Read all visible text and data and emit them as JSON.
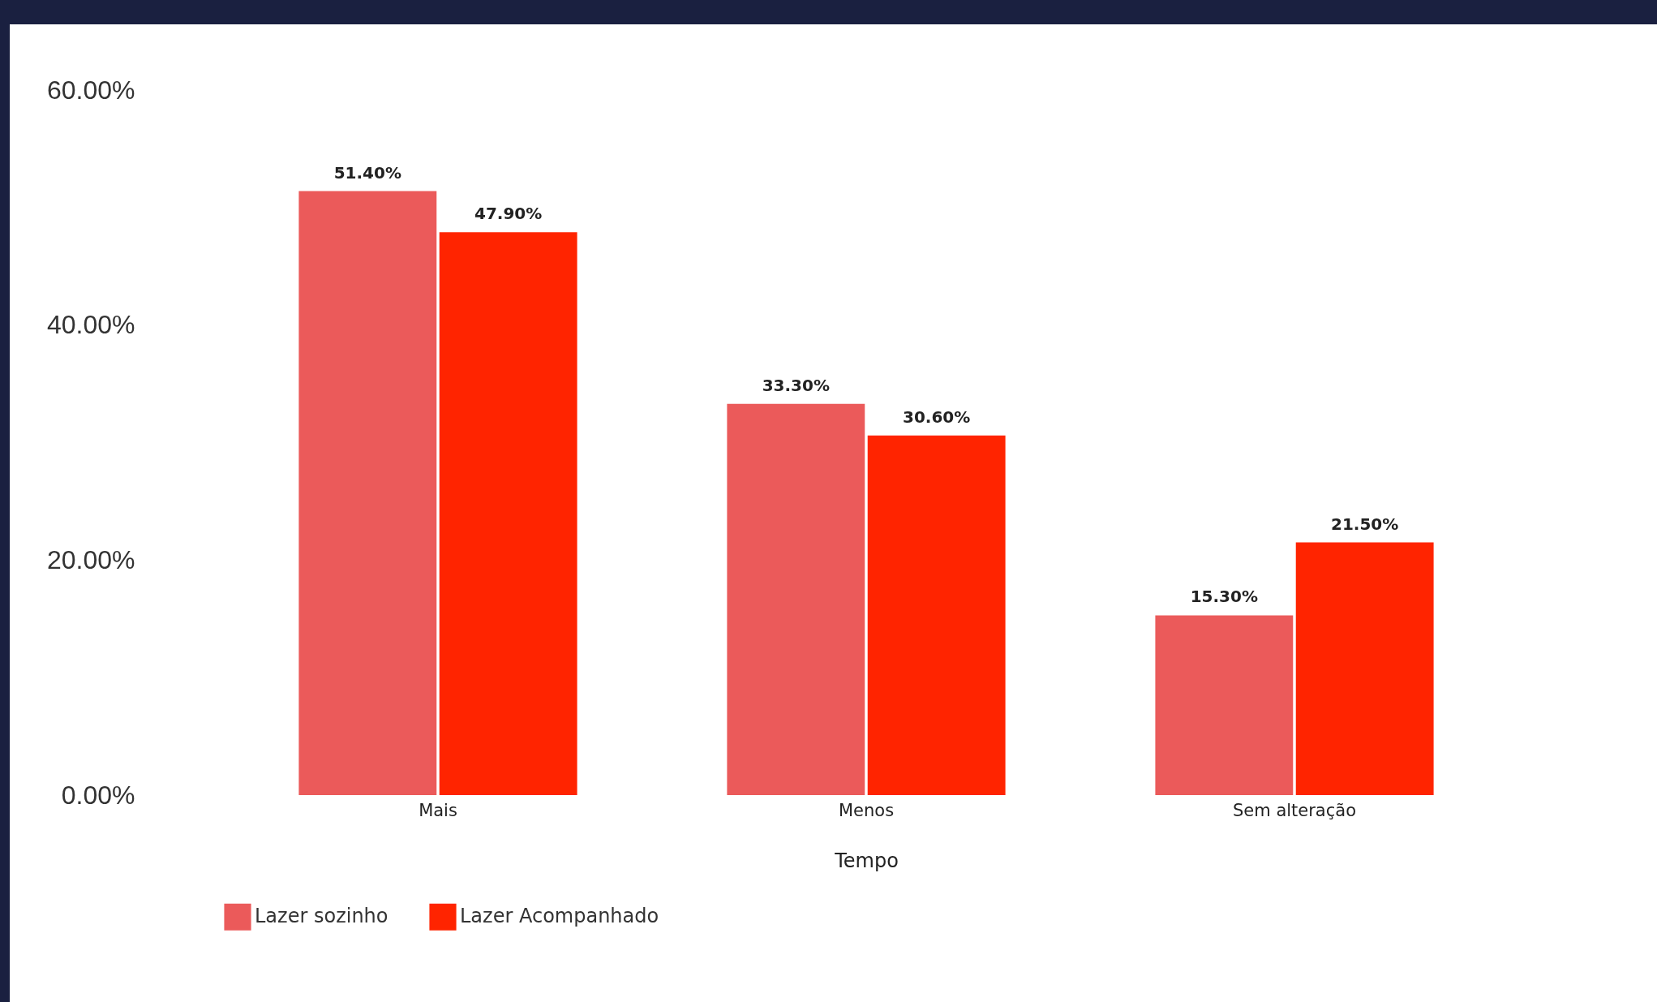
{
  "chart_data": {
    "type": "bar",
    "xlabel": "Tempo",
    "categories": [
      "Mais",
      "Menos",
      "Sem alteração"
    ],
    "series": [
      {
        "name": "Lazer sozinho",
        "color": "#eb5a5a",
        "values": [
          51.4,
          33.3,
          15.3
        ],
        "value_labels": [
          "51.40%",
          "33.30%",
          "15.30%"
        ]
      },
      {
        "name": "Lazer Acompanhado",
        "color": "#ff2400",
        "values": [
          47.9,
          30.6,
          21.5
        ],
        "value_labels": [
          "47.90%",
          "30.60%",
          "21.50%"
        ]
      }
    ],
    "ylim": [
      0,
      60
    ],
    "yticks": [
      {
        "value": 0,
        "label": "0.00%"
      },
      {
        "value": 20,
        "label": "20.00%"
      },
      {
        "value": 40,
        "label": "40.00%"
      },
      {
        "value": 60,
        "label": "60.00%"
      }
    ],
    "grid": false,
    "legend": "bottom"
  }
}
